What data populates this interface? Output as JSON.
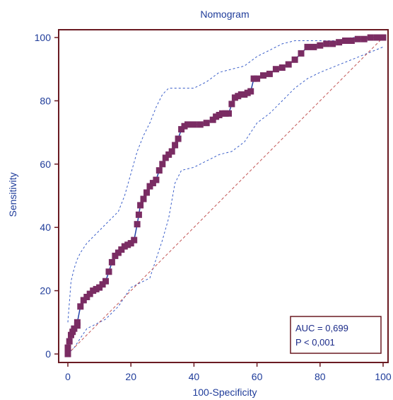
{
  "chart_data": {
    "type": "line",
    "title": "Nomogram",
    "xlabel": "100-Specificity",
    "ylabel": "Sensitivity",
    "xlim": [
      0,
      100
    ],
    "ylim": [
      0,
      100
    ],
    "xticks": [
      "0",
      "20",
      "40",
      "60",
      "80",
      "100"
    ],
    "yticks": [
      "0",
      "20",
      "40",
      "60",
      "80",
      "100"
    ],
    "grid": false,
    "series": [
      {
        "role": "roc",
        "x": [
          0,
          0,
          0.5,
          1,
          1.5,
          2,
          3,
          3,
          4,
          5,
          6,
          7,
          8,
          9,
          10,
          11,
          12,
          13,
          14,
          15,
          16,
          17,
          18,
          19,
          20,
          21,
          22,
          22.5,
          23,
          24,
          25,
          26,
          27,
          28,
          29,
          30,
          31,
          32,
          33,
          34,
          35,
          36,
          37,
          38,
          40,
          42,
          44,
          46,
          47,
          48,
          49,
          50,
          51,
          52,
          53,
          54,
          55,
          56,
          57,
          58,
          59,
          60,
          62,
          64,
          66,
          68,
          70,
          72,
          74,
          76,
          78,
          80,
          82,
          84,
          86,
          88,
          90,
          92,
          94,
          96,
          98,
          100
        ],
        "y": [
          0,
          2,
          4,
          6,
          7,
          8,
          9,
          10,
          15,
          17,
          18,
          19,
          20,
          20.5,
          21,
          22,
          23,
          26,
          29,
          31,
          32,
          33,
          34,
          34.5,
          35,
          36,
          41,
          44,
          47,
          49,
          51,
          53,
          54,
          55,
          58,
          60,
          62,
          63,
          64,
          66,
          68,
          71,
          72,
          72.5,
          72.5,
          72.5,
          73,
          74,
          75,
          75.5,
          76,
          76,
          76,
          79,
          81,
          81.5,
          82,
          82,
          82.5,
          83,
          87,
          87,
          88,
          88.5,
          90,
          90.5,
          91.5,
          93,
          95,
          97,
          97,
          97.5,
          98,
          98,
          98.5,
          99,
          99,
          99.5,
          99.5,
          100,
          100,
          100
        ]
      },
      {
        "role": "ci-upper",
        "x": [
          0,
          1,
          2,
          3,
          4,
          6,
          8,
          10,
          12,
          14,
          16,
          18,
          20,
          22,
          24,
          26,
          28,
          30,
          32,
          34,
          36,
          40,
          44,
          48,
          52,
          56,
          60,
          64,
          68,
          72,
          76,
          80,
          85,
          90,
          95,
          100
        ],
        "y": [
          10,
          23,
          27,
          30,
          32,
          35,
          37,
          39,
          41,
          43,
          45,
          50,
          57,
          64,
          69,
          73,
          78,
          82,
          84,
          84,
          84,
          84,
          86,
          89,
          90,
          91,
          94,
          96,
          98,
          99,
          99,
          99,
          99,
          100,
          100,
          100
        ]
      },
      {
        "role": "ci-lower",
        "x": [
          0,
          2,
          4,
          6,
          8,
          10,
          12,
          14,
          16,
          18,
          20,
          22,
          24,
          26,
          28,
          30,
          32,
          34,
          36,
          40,
          44,
          48,
          52,
          56,
          60,
          64,
          68,
          72,
          76,
          80,
          85,
          90,
          95,
          100
        ],
        "y": [
          0,
          2,
          5,
          8,
          9,
          10,
          11,
          13,
          15,
          18,
          21,
          22,
          23,
          24,
          30,
          36,
          43,
          54,
          58,
          59,
          61,
          63,
          64,
          67,
          73,
          76,
          80,
          84,
          87,
          89,
          91,
          93,
          95,
          97
        ]
      },
      {
        "role": "reference",
        "x": [
          0,
          100
        ],
        "y": [
          0,
          100
        ]
      }
    ],
    "annotations": [
      "AUC = 0,699",
      "P < 0,001"
    ],
    "legend_position": "bottom-right",
    "colors": {
      "roc_line": "#2341a8",
      "roc_marker": "#7a2c63",
      "ci_line": "#3b5fc9",
      "reference_line": "#c25555",
      "frame": "#6a1a22",
      "text": "#1f3c9a"
    }
  }
}
